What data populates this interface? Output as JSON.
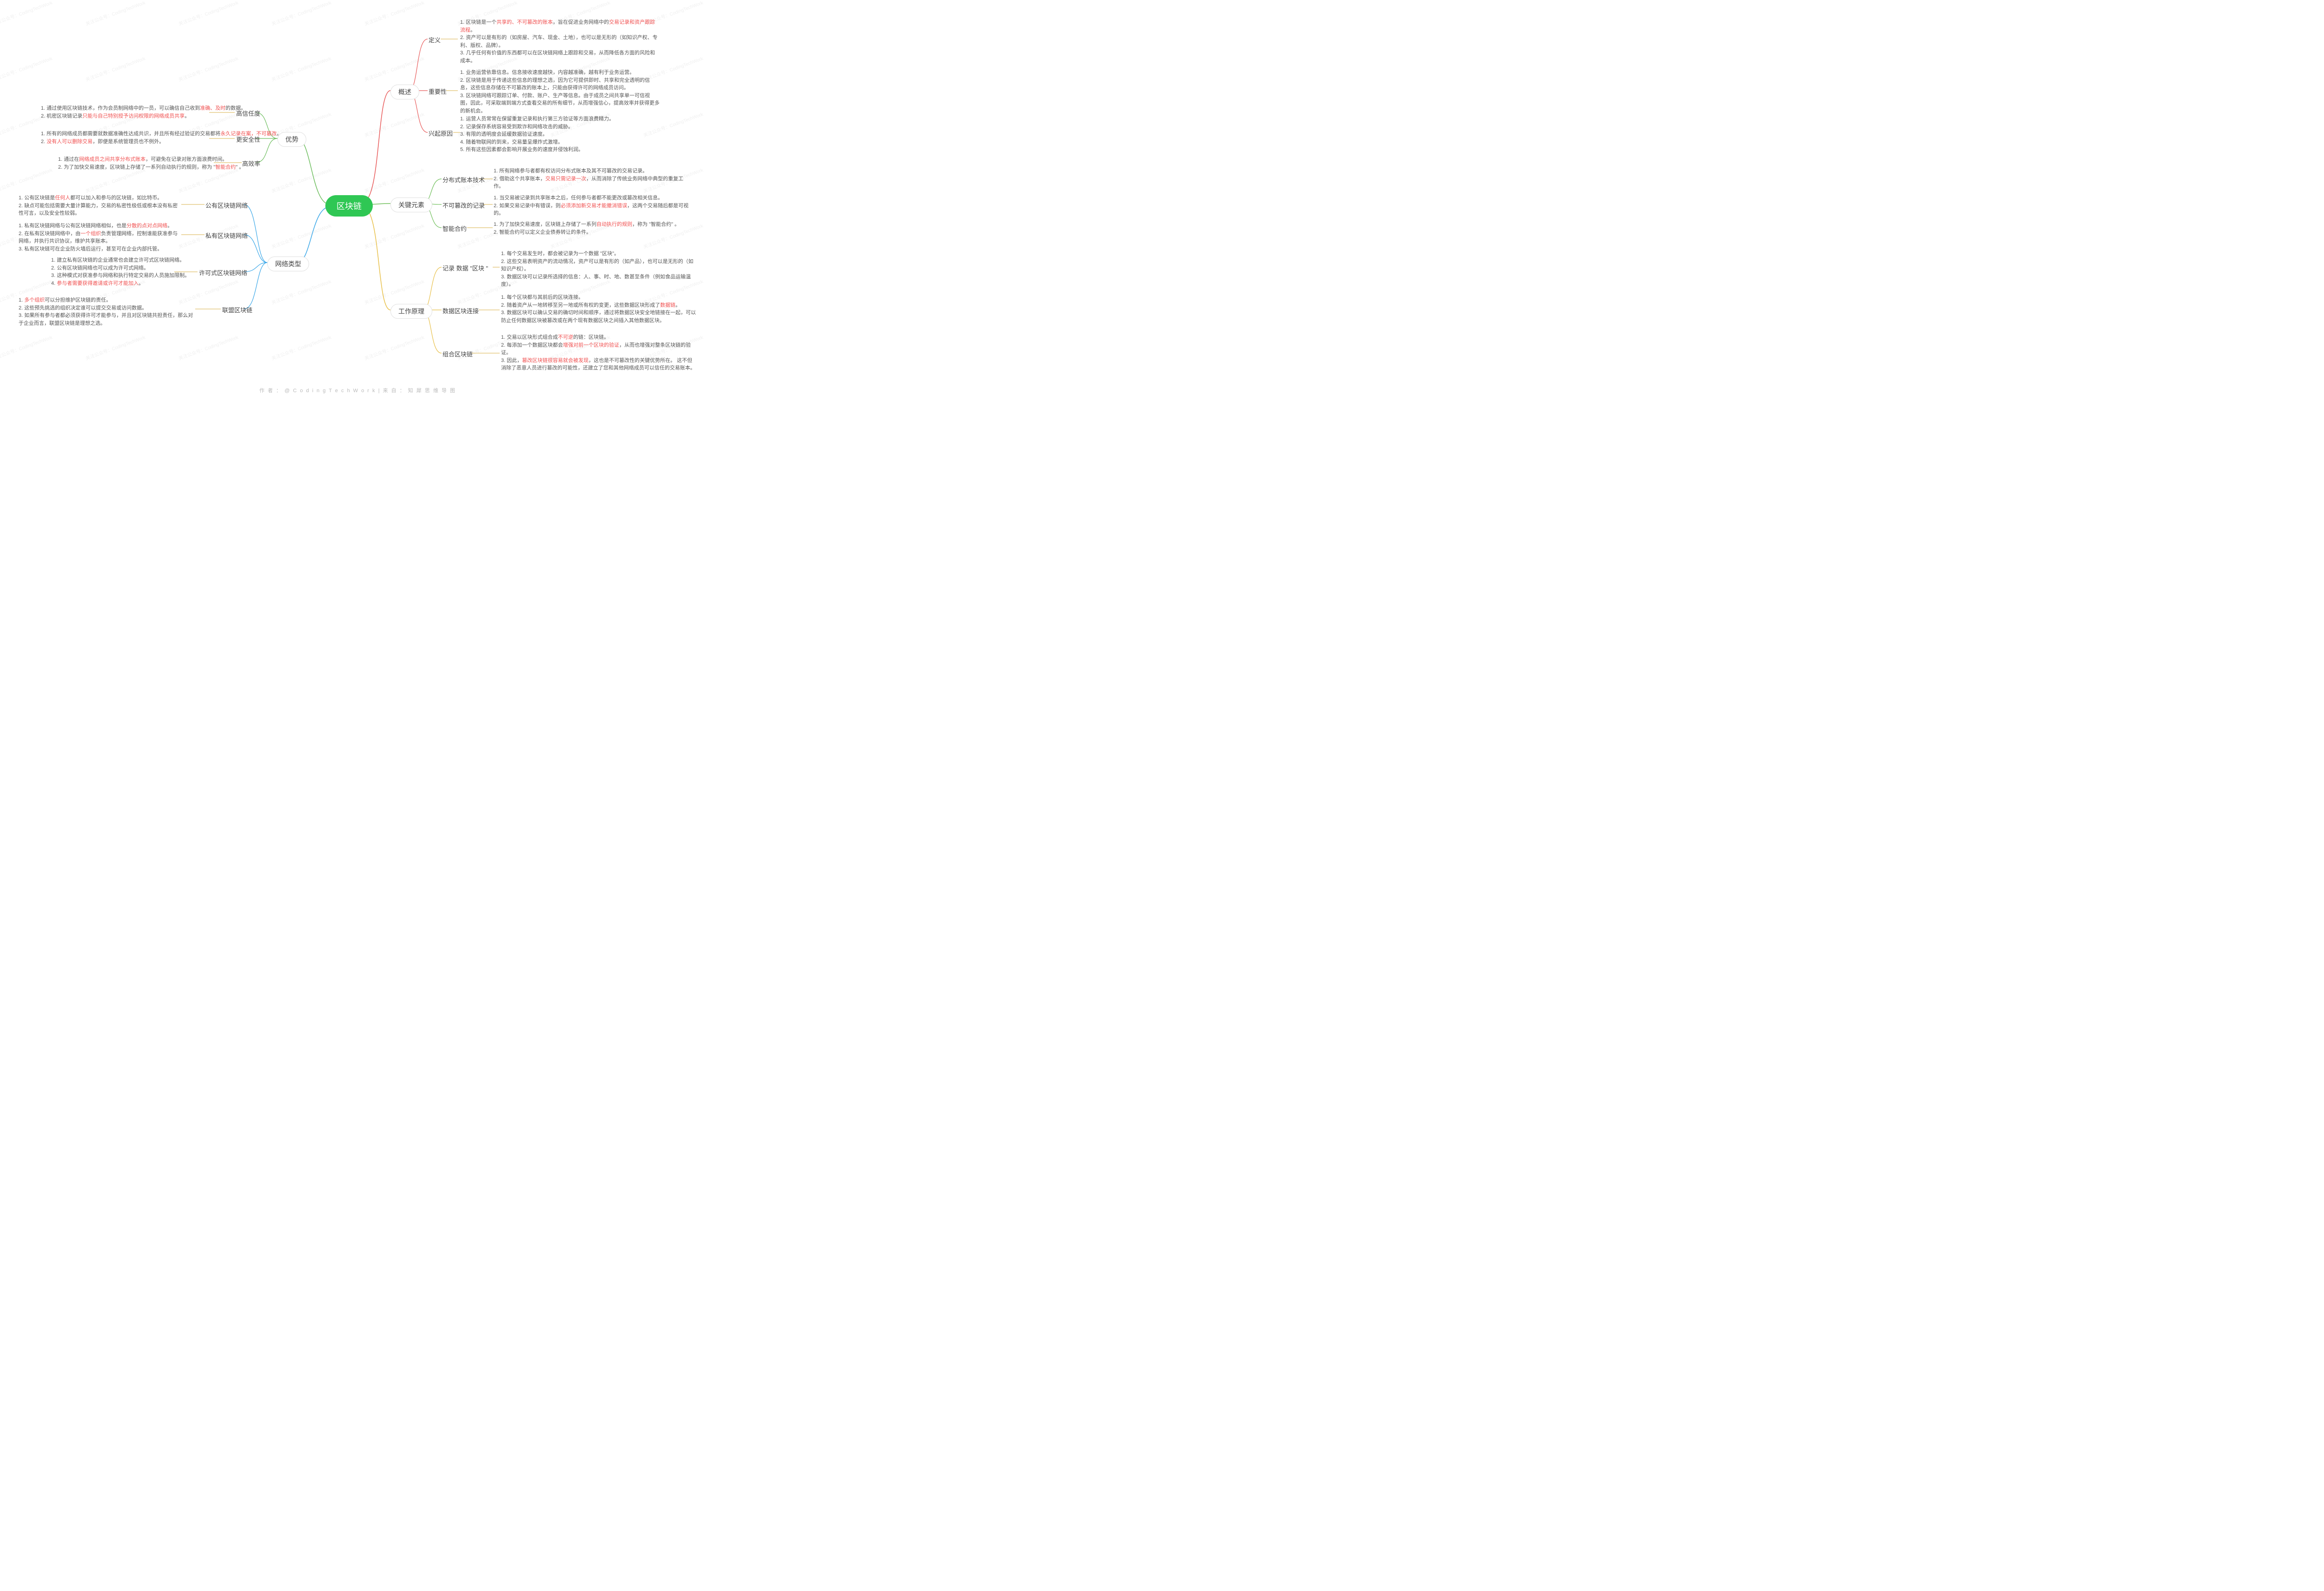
{
  "root": "区块链",
  "footer": "作 者 ： @ C o d i n g T e c h W o r k   |   来 自 ： 知 犀 思 维 导 图",
  "watermark": "关注公众号：CodingTechWork",
  "colors": {
    "root_bg": "#2fc754",
    "branch_advantage": "#6ebe5f",
    "branch_network": "#3aa7e8",
    "branch_overview": "#e85a5a",
    "branch_key": "#6fbf5a",
    "branch_work": "#e8c04a",
    "leaf_line": "#d9b24a",
    "highlight": "#f05050",
    "text": "#555555",
    "node_border": "#e0e0e0"
  },
  "branches_left": [
    {
      "label": "优势",
      "children": [
        {
          "label": "高信任度",
          "leaves": [
            {
              "t": "1. 通过使用区块链技术，作为会员制网络中的一员，可以确信自己收到",
              "h": "准确、及时",
              "t2": "的数据。"
            },
            {
              "t": "2. 机密区块链记录",
              "h": "只能与自己特别授予访问权限的网络成员共享",
              "t2": "。"
            }
          ]
        },
        {
          "label": "更安全性",
          "leaves": [
            {
              "t": "1. 所有的网络成员都需要就数据准确性达成共识，并且所有经过验证的交易都将",
              "h": "永久记录在案，不可篡改",
              "t2": "。"
            },
            {
              "t": "2. ",
              "h": "没有人可以删除交易",
              "t2": "，即便是系统管理员也不例外。"
            }
          ]
        },
        {
          "label": "高效率",
          "leaves": [
            {
              "t": "1. 通过在",
              "h": "网络成员之间共享分布式账本",
              "t2": "，可避免在记录对账方面浪费时间。"
            },
            {
              "t": "2. 为了加快交易速度，区块链上存储了一系列自动执行的规则，称为 \"",
              "h": "智能合约",
              "t2": "\" 。"
            }
          ]
        }
      ]
    },
    {
      "label": "网络类型",
      "children": [
        {
          "label": "公有区块链网络",
          "leaves": [
            {
              "t": "1. 公有区块链是",
              "h": "任何人",
              "t2": "都可以加入和参与的区块链，如比特币。"
            },
            {
              "t": "2. 缺点可能包括需要大量计算能力，交易的私密性极低或根本没有私密性可言，以及安全性较弱。"
            }
          ]
        },
        {
          "label": "私有区块链网络",
          "leaves": [
            {
              "t": "1. 私有区块链网络与公有区块链网络相似，也是",
              "h": "分散的点对点网络",
              "t2": "。"
            },
            {
              "t": "2. 在私有区块链网络中，由",
              "h": "一个组织",
              "t2": "负责管理网络，控制谁能获准参与网络，并执行共识协议，维护共享账本。"
            },
            {
              "t": "3. 私有区块链可在企业防火墙后运行，甚至可在企业内部托管。"
            }
          ]
        },
        {
          "label": "许可式区块链网络",
          "leaves": [
            {
              "t": "1. 建立私有区块链的企业通常也会建立许可式区块链网络。"
            },
            {
              "t": "2. 公有区块链网络也可以成为许可式网络。"
            },
            {
              "t": "3. 这种模式对获准参与网络和执行特定交易的人员施加限制。"
            },
            {
              "t": "4. ",
              "h": "参与者需要获得邀请或许可才能加入",
              "t2": "。"
            }
          ]
        },
        {
          "label": "联盟区块链",
          "leaves": [
            {
              "t": "1. ",
              "h": "多个组织",
              "t2": "可以分担维护区块链的责任。"
            },
            {
              "t": "2. 这些预先挑选的组织决定谁可以提交交易或访问数据。"
            },
            {
              "t": "3. 如果所有参与者都必须获得许可才能参与，并且对区块链共担责任，那么对于企业而言，联盟区块链是理想之选。"
            }
          ]
        }
      ]
    }
  ],
  "branches_right": [
    {
      "label": "概述",
      "children": [
        {
          "label": "定义",
          "leaves": [
            {
              "t": "1. 区块链是一个",
              "h": "共享的、不可篡改的账本",
              "t2": "，旨在促进业务网络中的",
              "h2": "交易记录和资产跟踪流程",
              "t3": "。"
            },
            {
              "t": "2. 资产可以是有形的（如房屋、汽车、现金、土地），也可以是无形的（如知识产权、专利、版权、品牌）。"
            },
            {
              "t": "3. 几乎任何有价值的东西都可以在区块链网络上跟踪和交易，从而降低各方面的风险和成本。"
            }
          ]
        },
        {
          "label": "重要性",
          "leaves": [
            {
              "t": "1. 业务运营依靠信息。信息接收速度越快，内容越准确，越有利于业务运营。"
            },
            {
              "t": "2. 区块链是用于传递这些信息的理想之选，因为它可提供即时、共享和完全透明的信息，这些信息存储在不可篡改的账本上，只能由获得许可的网络成员访问。"
            },
            {
              "t": "3. 区块链网络可跟踪订单、付款、账户、生产等信息。由于成员之间共享单一可信视图，因此，可采取端到端方式查看交易的所有细节，从而增强信心，提高效率并获得更多的新机会。"
            }
          ]
        },
        {
          "label": "兴起原因",
          "leaves": [
            {
              "t": "1. 运营人员常常在保留重复记录和执行第三方验证等方面浪费精力。"
            },
            {
              "t": "2. 记录保存系统容易受到欺诈和网络攻击的威胁。"
            },
            {
              "t": "3. 有限的透明度会延缓数据验证速度。"
            },
            {
              "t": "4. 随着物联网的到来，交易量呈爆炸式激增。"
            },
            {
              "t": "5. 所有这些因素都会影响开展业务的速度并侵蚀利润。"
            }
          ]
        }
      ]
    },
    {
      "label": "关键元素",
      "children": [
        {
          "label": "分布式账本技术",
          "leaves": [
            {
              "t": "1. 所有网络参与者都有权访问分布式账本及其不可篡改的交易记录。"
            },
            {
              "t": "2. 借助这个共享账本，",
              "h": "交易只需记录一次",
              "t2": "，从而消除了传统业务网络中典型的重复工作。"
            }
          ]
        },
        {
          "label": "不可篡改的记录",
          "leaves": [
            {
              "t": "1. 当交易被记录到共享账本之后，任何参与者都不能更改或篡改相关信息。"
            },
            {
              "t": "2. 如果交易记录中有错误，则",
              "h": "必须添加新交易才能撤消错误",
              "t2": "，这两个交易随后都是可视的。"
            }
          ]
        },
        {
          "label": "智能合约",
          "leaves": [
            {
              "t": "1. 为了加快交易速度，区块链上存储了一系列",
              "h": "自动执行的规则",
              "t2": "，称为 \"智能合约\" 。"
            },
            {
              "t": "2. 智能合约可以定义企业债券转让的条件。"
            }
          ]
        }
      ]
    },
    {
      "label": "工作原理",
      "children": [
        {
          "label": "记录 数据 \"区块 \"",
          "leaves": [
            {
              "t": "1. 每个交易发生时，都会被记录为一个数据 \"区块\"。"
            },
            {
              "t": "2. 这些交易表明资产的流动情况，资产可以是有形的（如产品），也可以是无形的（如知识产权）。"
            },
            {
              "t": "3. 数据区块可以记录所选择的信息：人、事、时、地、数甚至条件（例如食品运输温度）。"
            }
          ]
        },
        {
          "label": "数据区块连接",
          "leaves": [
            {
              "t": "1. 每个区块都与其前后的区块连接。"
            },
            {
              "t": "2. 随着资产从一地转移至另一地或所有权的变更，这些数据区块形成了",
              "h": "数据链",
              "t2": "。"
            },
            {
              "t": "3. 数据区块可以确认交易的确切时间和顺序，通过将数据区块安全地链接在一起，可以防止任何数据区块被篡改或在两个现有数据区块之间插入其他数据区块。"
            }
          ]
        },
        {
          "label": "组合区块链",
          "leaves": [
            {
              "t": "1. 交易以区块形式组合成",
              "h": "不可逆",
              "t2": "的链：区块链。"
            },
            {
              "t": "2. 每添加一个数据区块都会",
              "h": "增强对前一个区块的验证",
              "t2": "，从而也增强对整条区块链的验证。"
            },
            {
              "t": "3. 因此，",
              "h": "篡改区块链很容易就会被发现",
              "t2": "，这也是不可篡改性的关键优势所在。 这不但消除了恶意人员进行篡改的可能性，还建立了您和其他网络成员可以信任的交易账本。"
            }
          ]
        }
      ]
    }
  ]
}
